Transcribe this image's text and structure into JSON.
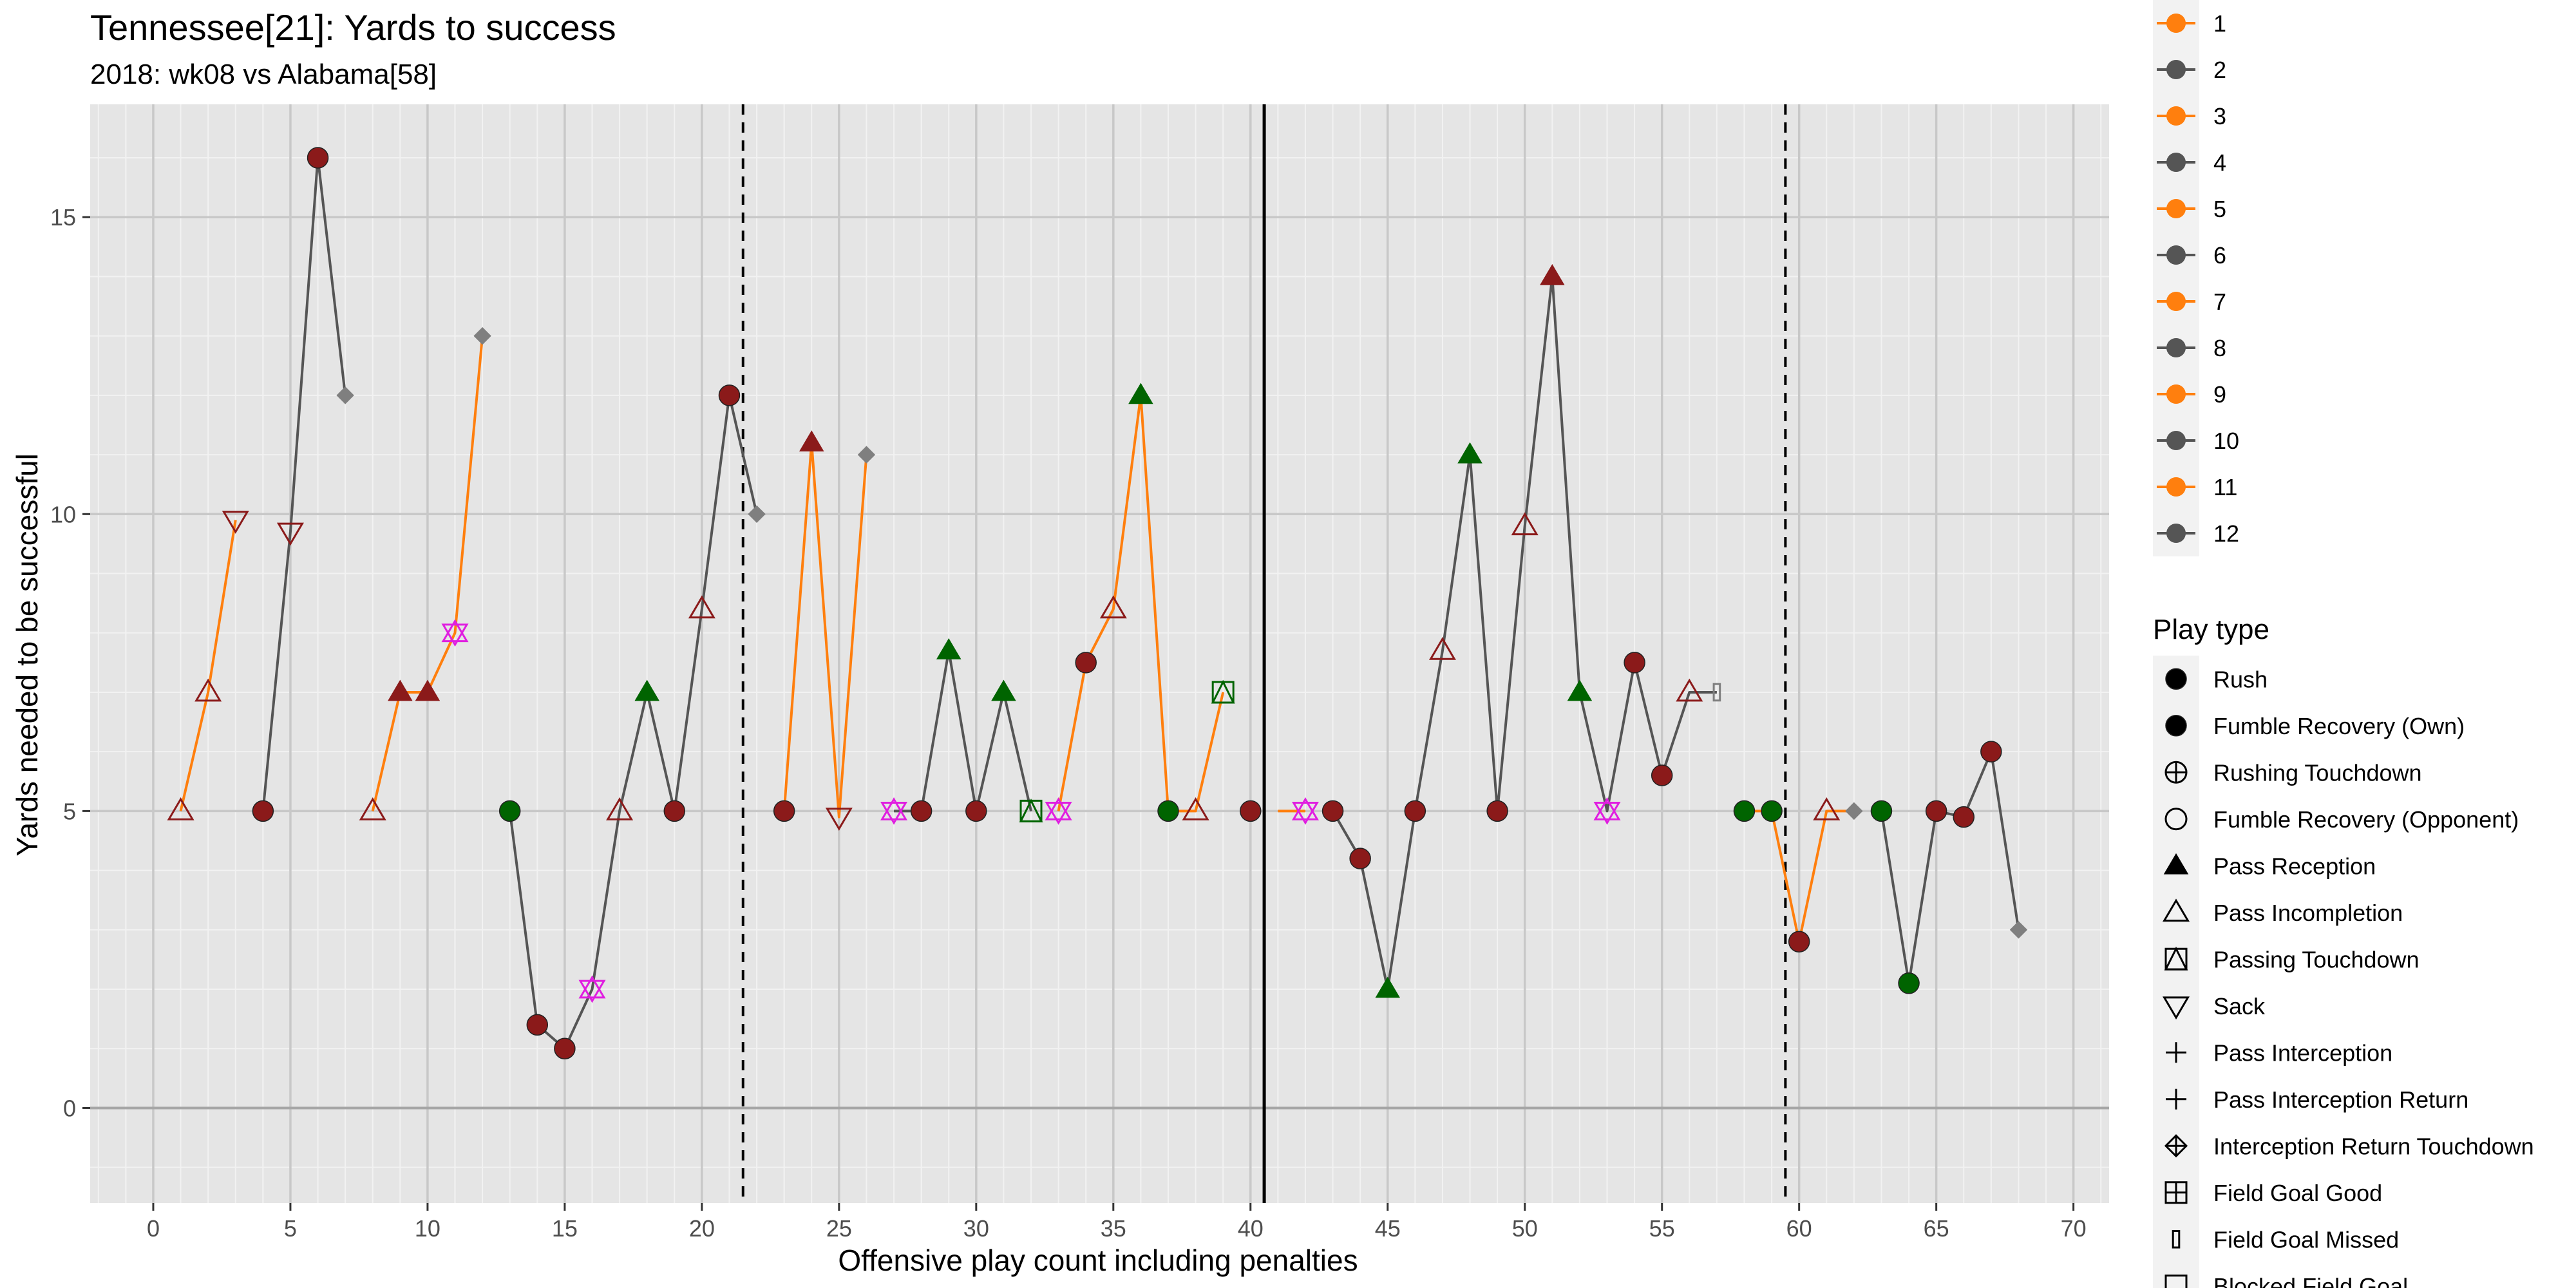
{
  "chart_data": {
    "type": "scatter",
    "title": "Tennessee[21]: Yards to success",
    "subtitle": "2018: wk08 vs Alabama[58]",
    "xlabel": "Offensive play count including penalties",
    "ylabel": "Yards needed to be successful",
    "xlim": [
      -2.3,
      71.3
    ],
    "ylim": [
      -1.6,
      16.9
    ],
    "x_ticks": [
      0,
      5,
      10,
      15,
      20,
      25,
      30,
      35,
      40,
      45,
      50,
      55,
      60,
      65,
      70
    ],
    "y_ticks": [
      0,
      5,
      10,
      15
    ],
    "grid": true,
    "vlines": [
      {
        "x": 21.5,
        "style": "dashed"
      },
      {
        "x": 40.5,
        "style": "solid"
      },
      {
        "x": 59.5,
        "style": "dashed"
      }
    ],
    "drive_legend": {
      "entries": [
        "1",
        "2",
        "3",
        "4",
        "5",
        "6",
        "7",
        "8",
        "9",
        "10",
        "11",
        "12"
      ],
      "colors": [
        "#ff7f0e",
        "#555555",
        "#ff7f0e",
        "#555555",
        "#ff7f0e",
        "#555555",
        "#ff7f0e",
        "#555555",
        "#ff7f0e",
        "#555555",
        "#ff7f0e",
        "#555555"
      ]
    },
    "play_type_legend": {
      "title": "Play type",
      "entries": [
        {
          "label": "Rush",
          "shape": "circle"
        },
        {
          "label": "Fumble Recovery (Own)",
          "shape": "circle"
        },
        {
          "label": "Rushing Touchdown",
          "shape": "circle-plus"
        },
        {
          "label": "Fumble Recovery (Opponent)",
          "shape": "circle-open"
        },
        {
          "label": "Pass Reception",
          "shape": "triangle"
        },
        {
          "label": "Pass Incompletion",
          "shape": "triangle-open"
        },
        {
          "label": "Passing Touchdown",
          "shape": "square-triangle"
        },
        {
          "label": "Sack",
          "shape": "triangle-down-open"
        },
        {
          "label": "Pass Interception",
          "shape": "plus"
        },
        {
          "label": "Pass Interception Return",
          "shape": "plus"
        },
        {
          "label": "Interception Return Touchdown",
          "shape": "diamond-plus"
        },
        {
          "label": "Field Goal Good",
          "shape": "square-plus"
        },
        {
          "label": "Field Goal Missed",
          "shape": "bar"
        },
        {
          "label": "Blocked Field Goal",
          "shape": "square-open"
        }
      ]
    },
    "drives": [
      {
        "drive": "1",
        "color": "#ff7f0e",
        "points": [
          {
            "x": 1,
            "y": 5,
            "shape": "triangle-open",
            "color": "#8b1a1a"
          },
          {
            "x": 2,
            "y": 7,
            "shape": "triangle-open",
            "color": "#8b1a1a"
          },
          {
            "x": 3,
            "y": 9.9,
            "shape": "triangle-down-open",
            "color": "#8b1a1a"
          }
        ]
      },
      {
        "drive": "2",
        "color": "#555555",
        "points": [
          {
            "x": 4,
            "y": 5,
            "shape": "circle",
            "color": "#8b1a1a"
          },
          {
            "x": 5,
            "y": 9.7,
            "shape": "triangle-down-open",
            "color": "#8b1a1a"
          },
          {
            "x": 6,
            "y": 16,
            "shape": "circle",
            "color": "#8b1a1a"
          },
          {
            "x": 7,
            "y": 12,
            "shape": "diamond",
            "color": "#7f7f7f"
          }
        ]
      },
      {
        "drive": "3",
        "color": "#ff7f0e",
        "points": [
          {
            "x": 8,
            "y": 5,
            "shape": "triangle-open",
            "color": "#8b1a1a"
          },
          {
            "x": 9,
            "y": 7,
            "shape": "triangle",
            "color": "#8b1a1a"
          },
          {
            "x": 10,
            "y": 7,
            "shape": "triangle",
            "color": "#8b1a1a"
          },
          {
            "x": 11,
            "y": 8,
            "shape": "star",
            "color": "#e01ee0"
          },
          {
            "x": 12,
            "y": 13,
            "shape": "diamond",
            "color": "#7f7f7f"
          }
        ]
      },
      {
        "drive": "4",
        "color": "#555555",
        "points": [
          {
            "x": 13,
            "y": 5,
            "shape": "circle",
            "color": "#006400"
          },
          {
            "x": 14,
            "y": 1.4,
            "shape": "circle",
            "color": "#8b1a1a"
          },
          {
            "x": 15,
            "y": 1,
            "shape": "circle",
            "color": "#8b1a1a"
          },
          {
            "x": 16,
            "y": 2,
            "shape": "star",
            "color": "#e01ee0"
          },
          {
            "x": 17,
            "y": 5,
            "shape": "triangle-open",
            "color": "#8b1a1a"
          },
          {
            "x": 18,
            "y": 7,
            "shape": "triangle",
            "color": "#006400"
          },
          {
            "x": 19,
            "y": 5,
            "shape": "circle",
            "color": "#8b1a1a"
          },
          {
            "x": 20,
            "y": 8.4,
            "shape": "triangle-open",
            "color": "#8b1a1a"
          },
          {
            "x": 21,
            "y": 12,
            "shape": "circle",
            "color": "#8b1a1a"
          },
          {
            "x": 22,
            "y": 10,
            "shape": "diamond",
            "color": "#7f7f7f"
          }
        ]
      },
      {
        "drive": "5",
        "color": "#ff7f0e",
        "points": [
          {
            "x": 23,
            "y": 5,
            "shape": "circle",
            "color": "#8b1a1a"
          },
          {
            "x": 24,
            "y": 11.2,
            "shape": "triangle",
            "color": "#8b1a1a"
          },
          {
            "x": 25,
            "y": 4.9,
            "shape": "triangle-down-open",
            "color": "#8b1a1a"
          },
          {
            "x": 26,
            "y": 11,
            "shape": "diamond",
            "color": "#7f7f7f"
          }
        ]
      },
      {
        "drive": "6",
        "color": "#555555",
        "points": [
          {
            "x": 27,
            "y": 5,
            "shape": "star",
            "color": "#e01ee0"
          },
          {
            "x": 28,
            "y": 5,
            "shape": "circle",
            "color": "#8b1a1a"
          },
          {
            "x": 29,
            "y": 7.7,
            "shape": "triangle",
            "color": "#006400"
          },
          {
            "x": 30,
            "y": 5,
            "shape": "circle",
            "color": "#8b1a1a"
          },
          {
            "x": 31,
            "y": 7,
            "shape": "triangle",
            "color": "#006400"
          },
          {
            "x": 32,
            "y": 5,
            "shape": "square-triangle",
            "color": "#006400"
          }
        ]
      },
      {
        "drive": "7",
        "color": "#ff7f0e",
        "points": [
          {
            "x": 33,
            "y": 5,
            "shape": "star",
            "color": "#e01ee0"
          },
          {
            "x": 34,
            "y": 7.5,
            "shape": "circle",
            "color": "#8b1a1a"
          },
          {
            "x": 35,
            "y": 8.4,
            "shape": "triangle-open",
            "color": "#8b1a1a"
          },
          {
            "x": 36,
            "y": 12,
            "shape": "triangle",
            "color": "#006400"
          },
          {
            "x": 37,
            "y": 5,
            "shape": "circle",
            "color": "#006400"
          },
          {
            "x": 38,
            "y": 5,
            "shape": "triangle-open",
            "color": "#8b1a1a"
          },
          {
            "x": 39,
            "y": 7,
            "shape": "square-triangle",
            "color": "#006400"
          }
        ]
      },
      {
        "drive": "8",
        "color": "#555555",
        "points": [
          {
            "x": 40,
            "y": 5,
            "shape": "circle",
            "color": "#8b1a1a"
          }
        ]
      },
      {
        "drive": "9",
        "color": "#ff7f0e",
        "points": [
          {
            "x": 41,
            "y": 5,
            "shape": "none",
            "color": "#ff7f0e"
          },
          {
            "x": 42,
            "y": 5,
            "shape": "star",
            "color": "#e01ee0"
          }
        ]
      },
      {
        "drive": "10",
        "color": "#555555",
        "points": [
          {
            "x": 43,
            "y": 5,
            "shape": "circle",
            "color": "#8b1a1a"
          },
          {
            "x": 44,
            "y": 4.2,
            "shape": "circle",
            "color": "#8b1a1a"
          },
          {
            "x": 45,
            "y": 2,
            "shape": "triangle",
            "color": "#006400"
          },
          {
            "x": 46,
            "y": 5,
            "shape": "circle",
            "color": "#8b1a1a"
          },
          {
            "x": 47,
            "y": 7.7,
            "shape": "triangle-open",
            "color": "#8b1a1a"
          },
          {
            "x": 48,
            "y": 11,
            "shape": "triangle",
            "color": "#006400"
          },
          {
            "x": 49,
            "y": 5,
            "shape": "circle",
            "color": "#8b1a1a"
          },
          {
            "x": 50,
            "y": 9.8,
            "shape": "triangle-open",
            "color": "#8b1a1a"
          },
          {
            "x": 51,
            "y": 14,
            "shape": "triangle",
            "color": "#8b1a1a"
          },
          {
            "x": 52,
            "y": 7,
            "shape": "triangle",
            "color": "#006400"
          },
          {
            "x": 53,
            "y": 5,
            "shape": "star",
            "color": "#e01ee0"
          },
          {
            "x": 54,
            "y": 7.5,
            "shape": "circle",
            "color": "#8b1a1a"
          },
          {
            "x": 55,
            "y": 5.6,
            "shape": "circle",
            "color": "#8b1a1a"
          },
          {
            "x": 56,
            "y": 7,
            "shape": "triangle-open",
            "color": "#8b1a1a"
          },
          {
            "x": 57,
            "y": 7,
            "shape": "bar",
            "color": "#7f7f7f"
          }
        ]
      },
      {
        "drive": "11",
        "color": "#ff7f0e",
        "points": [
          {
            "x": 58,
            "y": 5,
            "shape": "circle",
            "color": "#006400"
          },
          {
            "x": 59,
            "y": 5,
            "shape": "circle",
            "color": "#006400"
          },
          {
            "x": 60,
            "y": 2.8,
            "shape": "circle",
            "color": "#8b1a1a"
          },
          {
            "x": 61,
            "y": 5,
            "shape": "triangle-open",
            "color": "#8b1a1a"
          },
          {
            "x": 62,
            "y": 5,
            "shape": "diamond",
            "color": "#7f7f7f"
          }
        ]
      },
      {
        "drive": "12",
        "color": "#555555",
        "points": [
          {
            "x": 63,
            "y": 5,
            "shape": "circle",
            "color": "#006400"
          },
          {
            "x": 64,
            "y": 2.1,
            "shape": "circle",
            "color": "#006400"
          },
          {
            "x": 65,
            "y": 5,
            "shape": "circle",
            "color": "#8b1a1a"
          },
          {
            "x": 66,
            "y": 4.9,
            "shape": "circle",
            "color": "#8b1a1a"
          },
          {
            "x": 67,
            "y": 6,
            "shape": "circle",
            "color": "#8b1a1a"
          },
          {
            "x": 68,
            "y": 3,
            "shape": "diamond",
            "color": "#7f7f7f"
          }
        ]
      }
    ]
  }
}
